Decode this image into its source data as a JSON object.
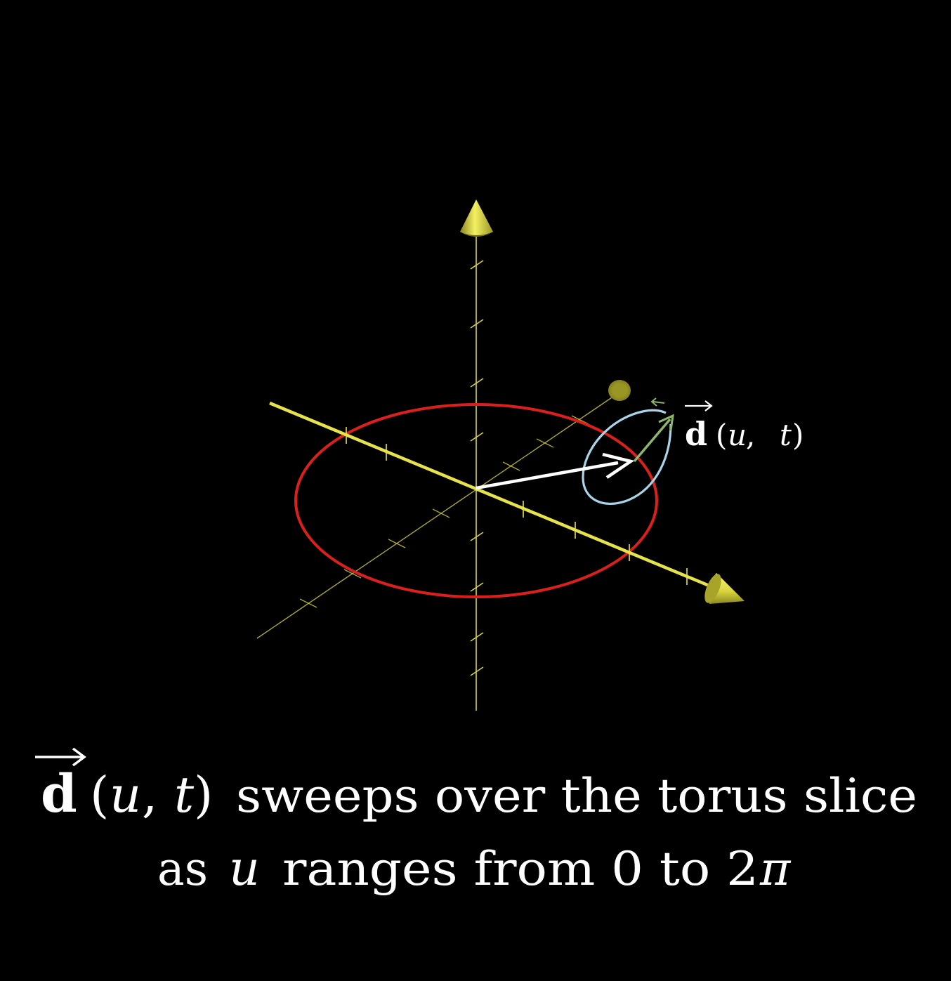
{
  "scene": {
    "colors": {
      "background": "#000000",
      "axis": "#d8d44a",
      "axis_bright": "#e6e24c",
      "cone": "#f0ec50",
      "circle_big": "#d9201c",
      "circle_small": "#a9d4e8",
      "vector_main": "#ffffff",
      "vector_small": "#8fb56a",
      "text": "#ffffff"
    },
    "vector_label": {
      "symbol": "d",
      "args": "(u, t)",
      "open_paren": "(",
      "u": "u",
      "comma": ",",
      "t": "t",
      "close_paren": ")"
    }
  },
  "caption": {
    "line1": {
      "symbol": "d",
      "open_paren": "(",
      "u": "u",
      "comma": ",",
      "t": "t",
      "close_paren": ")",
      "rest": "sweeps over the torus slice"
    },
    "line2": {
      "prefix": "as",
      "u": "u",
      "middle": "ranges from 0 to 2",
      "pi": "π"
    }
  }
}
